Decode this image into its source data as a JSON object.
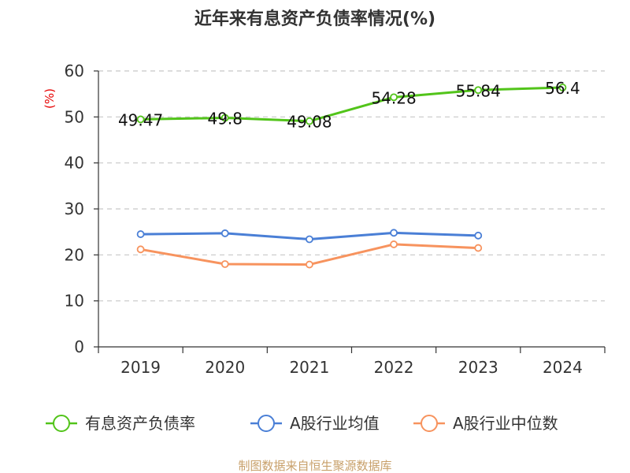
{
  "chart_data": {
    "type": "line",
    "title": "近年来有息资产负债率情况(%)",
    "ylabel": "(%)",
    "xlabel": "",
    "categories": [
      "2019",
      "2020",
      "2021",
      "2022",
      "2023",
      "2024"
    ],
    "yticks": [
      "0",
      "10",
      "20",
      "30",
      "40",
      "50",
      "60"
    ],
    "ylim": [
      0,
      60
    ],
    "grid": true,
    "legend_position": "bottom",
    "series": [
      {
        "name": "有息资产负债率",
        "color": "#52c41a",
        "values": [
          49.47,
          49.8,
          49.08,
          54.28,
          55.84,
          56.4
        ],
        "labels": [
          "49.47",
          "49.8",
          "49.08",
          "54.28",
          "55.84",
          "56.4"
        ],
        "show_labels": true
      },
      {
        "name": "A股行业均值",
        "color": "#4a7fd6",
        "values": [
          24.5,
          24.7,
          23.4,
          24.8,
          24.2,
          null
        ],
        "show_labels": false
      },
      {
        "name": "A股行业中位数",
        "color": "#f7935e",
        "values": [
          21.2,
          18.0,
          17.9,
          22.3,
          21.5,
          null
        ],
        "show_labels": false
      }
    ],
    "source": "制图数据来自恒生聚源数据库"
  }
}
